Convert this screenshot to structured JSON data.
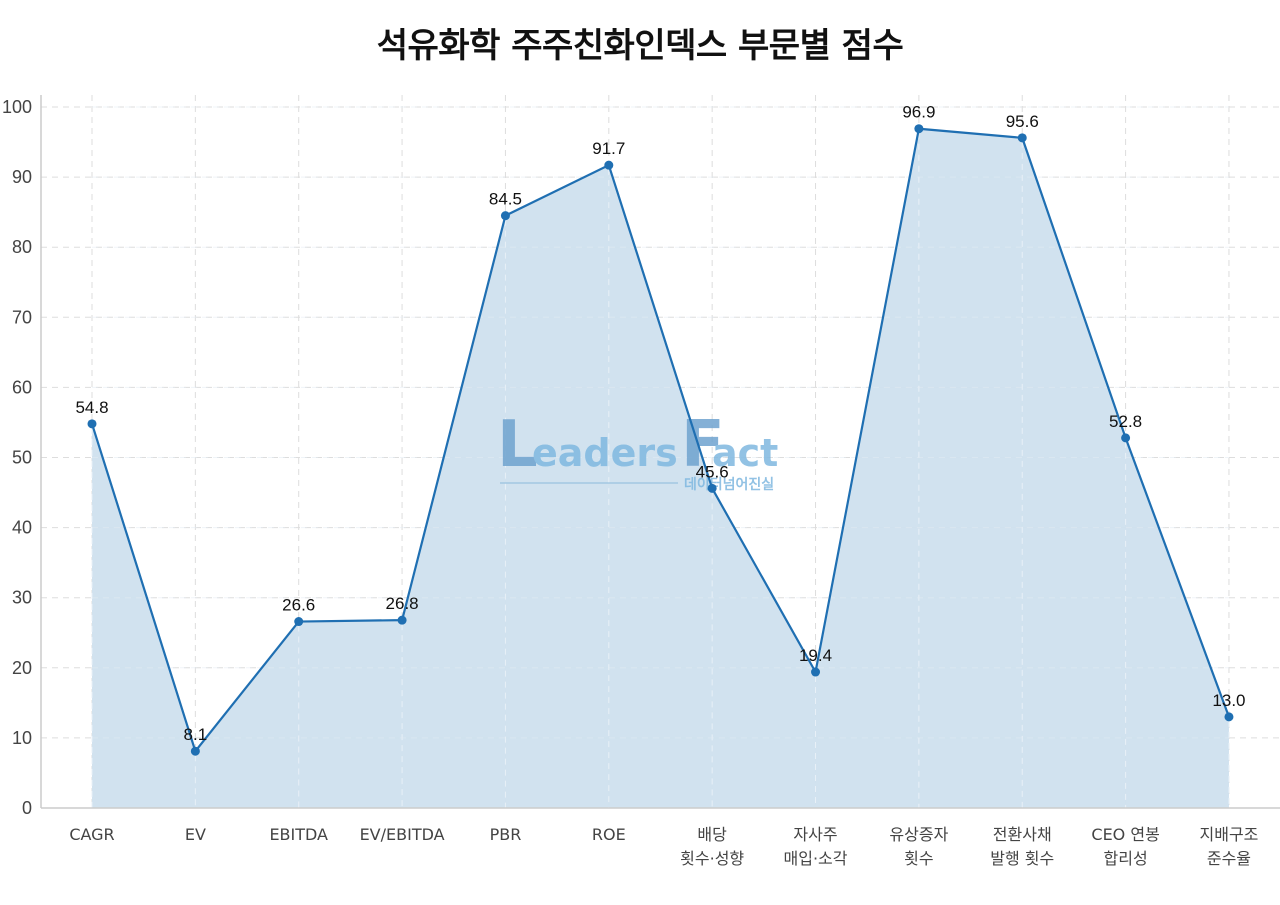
{
  "title": "석유화학 주주친화인덱스 부문별 점수",
  "chart_data": {
    "type": "area",
    "title": "석유화학 주주친화인덱스 부문별 점수",
    "xlabel": "",
    "ylabel": "",
    "ylim": [
      0,
      100
    ],
    "yticks": [
      0,
      10,
      20,
      30,
      40,
      50,
      60,
      70,
      80,
      90,
      100
    ],
    "grid": true,
    "legend": "none",
    "categories": [
      "CAGR",
      "EV",
      "EBITDA",
      "EV/EBITDA",
      "PBR",
      "ROE",
      "배당 횟수·성향",
      "자사주 매입·소각",
      "유상증자 횟수",
      "전환사채 발행 횟수",
      "CEO 연봉 합리성",
      "지배구조 준수율"
    ],
    "category_lines": [
      [
        "CAGR"
      ],
      [
        "EV"
      ],
      [
        "EBITDA"
      ],
      [
        "EV/EBITDA"
      ],
      [
        "PBR"
      ],
      [
        "ROE"
      ],
      [
        "배당",
        "횟수·성향"
      ],
      [
        "자사주",
        "매입·소각"
      ],
      [
        "유상증자",
        "횟수"
      ],
      [
        "전환사채",
        "발행 횟수"
      ],
      [
        "CEO 연봉",
        "합리성"
      ],
      [
        "지배구조",
        "준수율"
      ]
    ],
    "values": [
      54.8,
      8.1,
      26.6,
      26.8,
      84.5,
      91.7,
      45.6,
      19.4,
      96.9,
      95.6,
      52.8,
      13.0
    ],
    "data_labels": [
      "54.8",
      "8.1",
      "26.6",
      "26.8",
      "84.5",
      "91.7",
      "45.6",
      "19.4",
      "96.9",
      "95.6",
      "52.8",
      "13.0"
    ],
    "colors": {
      "line": "#1f6fb2",
      "fill": "#cfe0ee",
      "grid": "#dddddd",
      "axis": "#cccccc"
    }
  },
  "watermark": {
    "brand": "Leaders Fact",
    "brand_first": "L",
    "brand_mid": "eaders ",
    "brand_f": "F",
    "brand_end": "act",
    "tagline": "데이터넘어진실"
  }
}
